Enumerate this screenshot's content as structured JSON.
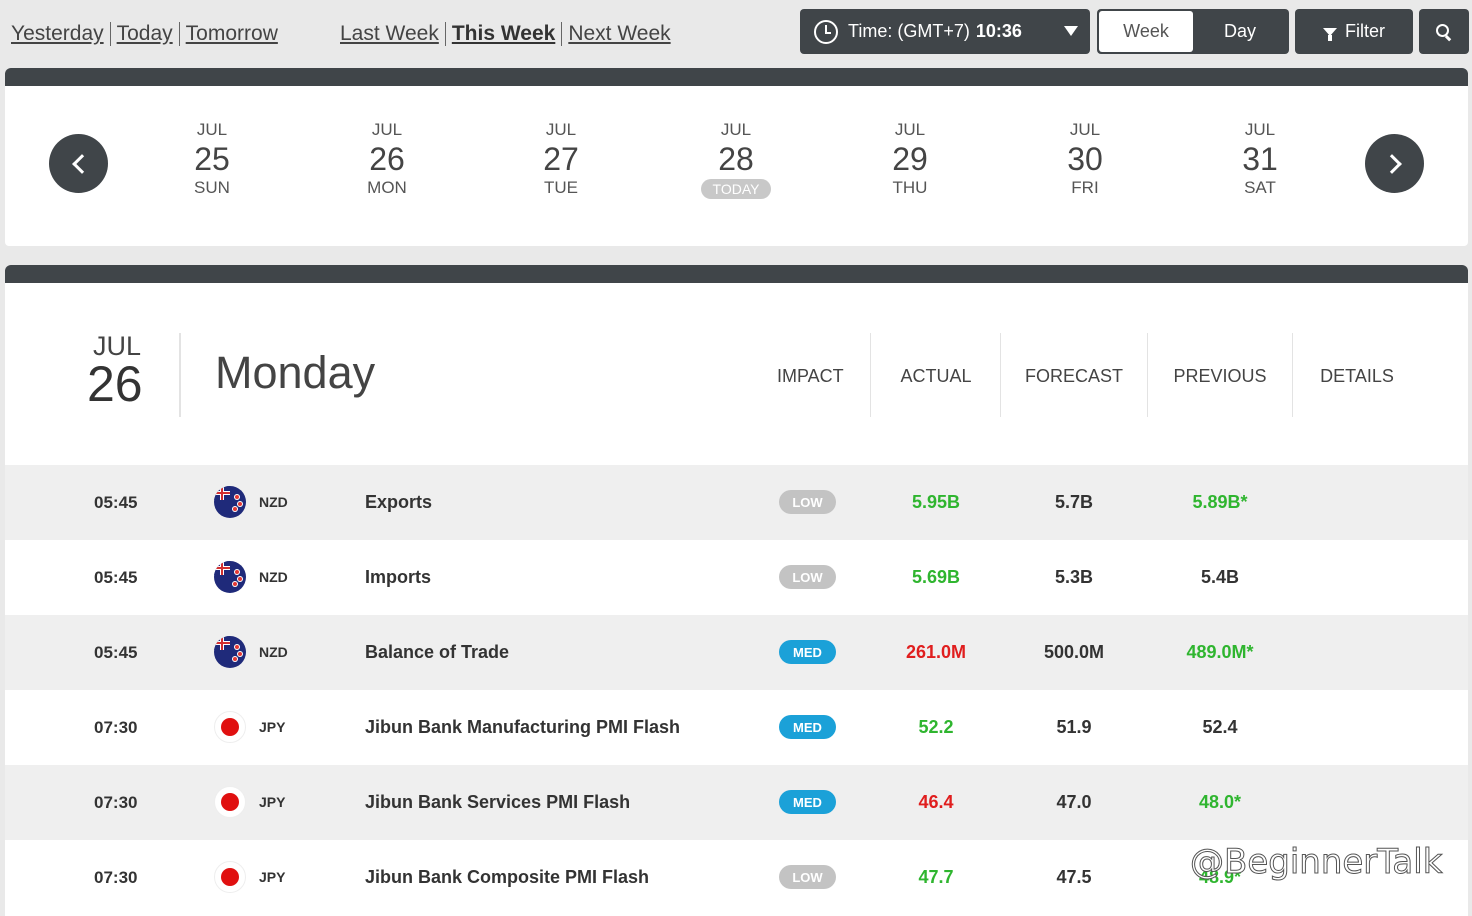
{
  "nav": {
    "left": [
      "Yesterday",
      "Today",
      "Tomorrow"
    ],
    "right": [
      "Last Week",
      "This Week",
      "Next Week"
    ],
    "active": "This Week"
  },
  "time": {
    "label": "Time: (GMT+7)",
    "value": "10:36"
  },
  "view_toggle": {
    "week": "Week",
    "day": "Day",
    "selected": "Week"
  },
  "filter": {
    "label": "Filter"
  },
  "days": [
    {
      "month": "JUL",
      "num": "25",
      "dow": "SUN"
    },
    {
      "month": "JUL",
      "num": "26",
      "dow": "MON"
    },
    {
      "month": "JUL",
      "num": "27",
      "dow": "TUE"
    },
    {
      "month": "JUL",
      "num": "28",
      "dow": "TODAY"
    },
    {
      "month": "JUL",
      "num": "29",
      "dow": "THU"
    },
    {
      "month": "JUL",
      "num": "30",
      "dow": "FRI"
    },
    {
      "month": "JUL",
      "num": "31",
      "dow": "SAT"
    }
  ],
  "day_header": {
    "month": "JUL",
    "num": "26",
    "name": "Monday",
    "columns": {
      "impact": "IMPACT",
      "actual": "ACTUAL",
      "forecast": "FORECAST",
      "previous": "PREVIOUS",
      "details": "DETAILS"
    }
  },
  "events": [
    {
      "time": "05:45",
      "currency": "NZD",
      "event": "Exports",
      "impact": "LOW",
      "actual": "5.95B",
      "forecast": "5.7B",
      "previous": "5.89B*"
    },
    {
      "time": "05:45",
      "currency": "NZD",
      "event": "Imports",
      "impact": "LOW",
      "actual": "5.69B",
      "forecast": "5.3B",
      "previous": "5.4B"
    },
    {
      "time": "05:45",
      "currency": "NZD",
      "event": "Balance of Trade",
      "impact": "MED",
      "actual": "261.0M",
      "forecast": "500.0M",
      "previous": "489.0M*"
    },
    {
      "time": "07:30",
      "currency": "JPY",
      "event": "Jibun Bank Manufacturing PMI Flash",
      "impact": "MED",
      "actual": "52.2",
      "forecast": "51.9",
      "previous": "52.4"
    },
    {
      "time": "07:30",
      "currency": "JPY",
      "event": "Jibun Bank Services PMI Flash",
      "impact": "MED",
      "actual": "46.4",
      "forecast": "47.0",
      "previous": "48.0*"
    },
    {
      "time": "07:30",
      "currency": "JPY",
      "event": "Jibun Bank Composite PMI Flash",
      "impact": "LOW",
      "actual": "47.7",
      "forecast": "47.5",
      "previous": "48.9*"
    }
  ],
  "colors": {
    "green": "#2fb52f",
    "red": "#e01e1e",
    "dark_bar": "#404549",
    "impact_med": "#1ba1d8",
    "impact_low": "#c3c3c3"
  },
  "watermark": "@BeginnerTalk"
}
